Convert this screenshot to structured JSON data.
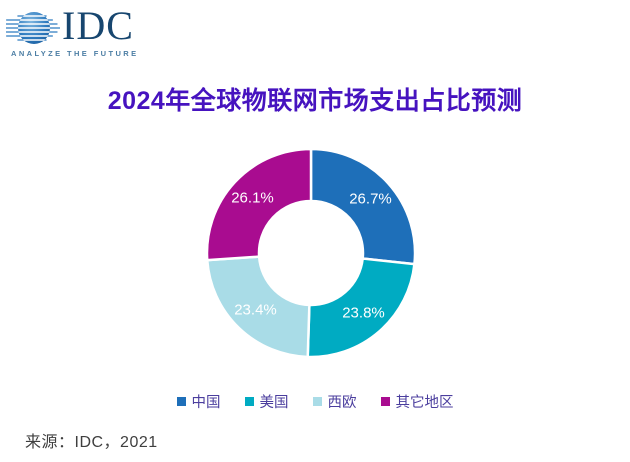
{
  "logo": {
    "brand": "IDC",
    "tagline": "ANALYZE THE FUTURE"
  },
  "title": "2024年全球物联网市场支出占比预测",
  "source_line": "来源：IDC，2021",
  "colors": {
    "title_text": "#4613BF",
    "legend_text": "#4B3E9E",
    "source_text": "#3F3F3F",
    "logo_navy": "#17466F",
    "logo_blue": "#2F7CC0",
    "logo_tagline": "#4C7EA4"
  },
  "chart_data": {
    "type": "pie",
    "subtype": "donut",
    "title": "2024年全球物联网市场支出占比预测",
    "categories": [
      "中国",
      "美国",
      "西欧",
      "其它地区"
    ],
    "values": [
      26.7,
      23.8,
      23.4,
      26.1
    ],
    "data_labels": [
      "26.7%",
      "23.8%",
      "23.4%",
      "26.1%"
    ],
    "colors": [
      "#1E6FB9",
      "#00ABC2",
      "#A9DCE7",
      "#A90C90"
    ],
    "unit": "%",
    "start_angle_deg": 0,
    "direction": "clockwise",
    "inner_radius_ratio": 0.5,
    "slice_gap_stroke": "#FFFFFF",
    "label_color": "#FFFFFF",
    "legend_position": "bottom"
  }
}
